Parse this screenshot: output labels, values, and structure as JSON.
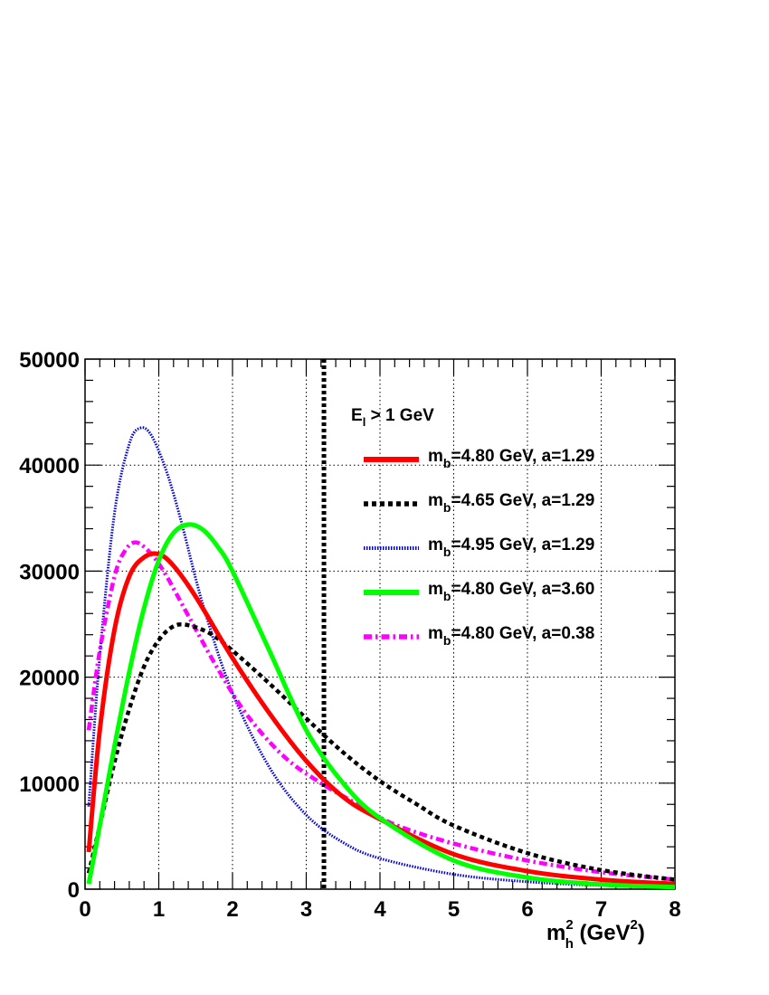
{
  "chart_data": {
    "type": "line",
    "xlabel": {
      "base": "m",
      "sub": "h",
      "sup": "2",
      "unit_open": " (GeV",
      "unit_sup": "2",
      "unit_close": ")"
    },
    "ylabel": "",
    "xlim": [
      0,
      8
    ],
    "ylim": [
      0,
      50000
    ],
    "x_ticks": [
      "0",
      "1",
      "2",
      "3",
      "4",
      "5",
      "6",
      "7",
      "8"
    ],
    "y_ticks": [
      "0",
      "10000",
      "20000",
      "30000",
      "40000",
      "50000"
    ],
    "grid": true,
    "legend_title": {
      "base": "E",
      "sub": "l",
      "rest": " > 1 GeV"
    },
    "legend_placement": "top-right",
    "cut_line_x": 3.24,
    "series": [
      {
        "base": "m",
        "sub": "b",
        "text": "=4.80 GeV, a=1.29",
        "color": "#ff0000",
        "style": "solid",
        "x": [
          0.05,
          0.2,
          0.4,
          0.6,
          0.8,
          1.0,
          1.2,
          1.5,
          2.0,
          2.5,
          3.0,
          3.5,
          4.0,
          5.0,
          6.0,
          7.0,
          8.0
        ],
        "y": [
          3500,
          15000,
          24500,
          29500,
          31300,
          31600,
          30500,
          27600,
          21800,
          16600,
          12100,
          8700,
          6600,
          3300,
          1700,
          900,
          500
        ]
      },
      {
        "base": "m",
        "sub": "b",
        "text": "=4.65 GeV, a=1.29",
        "color": "#000000",
        "style": "dotted",
        "x": [
          0.05,
          0.2,
          0.4,
          0.6,
          0.8,
          1.0,
          1.2,
          1.4,
          1.7,
          2.0,
          2.5,
          3.0,
          3.5,
          4.0,
          4.5,
          5.0,
          6.0,
          7.0,
          8.0
        ],
        "y": [
          1500,
          6000,
          12000,
          17000,
          21000,
          23500,
          24800,
          24900,
          24100,
          22500,
          19400,
          16100,
          12900,
          10200,
          8000,
          6000,
          3400,
          1800,
          900
        ]
      },
      {
        "base": "m",
        "sub": "b",
        "text": "=4.95 GeV, a=1.29",
        "color": "#0000dd",
        "style": "fine",
        "x": [
          0.05,
          0.2,
          0.4,
          0.6,
          0.75,
          0.9,
          1.1,
          1.3,
          1.6,
          2.0,
          2.5,
          3.0,
          3.5,
          4.0,
          5.0,
          6.0,
          7.0,
          8.0
        ],
        "y": [
          7800,
          22000,
          35500,
          42000,
          43500,
          42800,
          39500,
          34800,
          26800,
          18500,
          11500,
          7000,
          4400,
          2900,
          1400,
          700,
          350,
          200
        ]
      },
      {
        "base": "m",
        "sub": "b",
        "text": "=4.80 GeV, a=3.60",
        "color": "#00ff00",
        "style": "solid",
        "x": [
          0.05,
          0.2,
          0.4,
          0.6,
          0.8,
          1.0,
          1.2,
          1.4,
          1.6,
          1.8,
          2.0,
          2.5,
          3.0,
          3.5,
          4.0,
          5.0,
          6.0,
          7.0,
          8.0
        ],
        "y": [
          500,
          6000,
          13500,
          20500,
          26500,
          31000,
          33600,
          34400,
          33900,
          32300,
          30000,
          22500,
          15000,
          10000,
          6700,
          2700,
          1100,
          450,
          200
        ]
      },
      {
        "base": "m",
        "sub": "b",
        "text": "=4.80 GeV, a=0.38",
        "color": "#ff00ff",
        "style": "dashdot",
        "x": [
          0.05,
          0.2,
          0.4,
          0.55,
          0.7,
          0.9,
          1.1,
          1.4,
          1.8,
          2.2,
          2.7,
          3.2,
          3.7,
          4.2,
          5.0,
          6.0,
          7.0,
          8.0
        ],
        "y": [
          15000,
          22500,
          29500,
          32000,
          32700,
          31600,
          29600,
          25800,
          20800,
          16400,
          12500,
          10000,
          8000,
          6100,
          4300,
          2700,
          1600,
          900
        ]
      }
    ]
  }
}
